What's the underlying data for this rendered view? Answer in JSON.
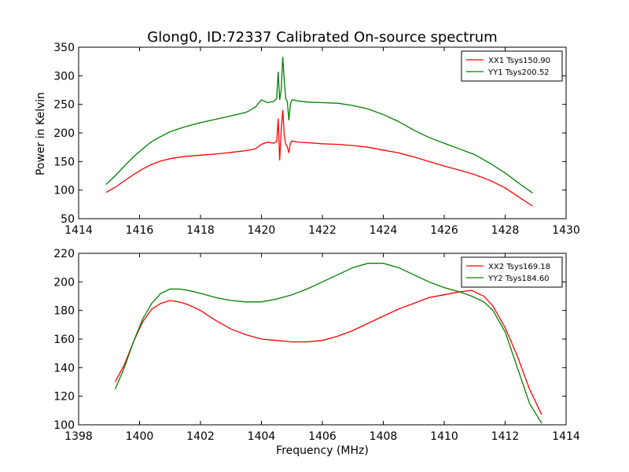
{
  "figure": {
    "title": "Glong0, ID:72337 Calibrated On-source spectrum",
    "ylabel": "Power in Kelvin",
    "xlabel": "Frequency (MHz)"
  },
  "chart_data": [
    {
      "type": "line",
      "title": "Glong0, ID:72337 Calibrated On-source spectrum",
      "ylabel": "Power in Kelvin",
      "xlabel": "",
      "xlim": [
        1414,
        1430
      ],
      "ylim": [
        50,
        350
      ],
      "xticks": [
        1414,
        1416,
        1418,
        1420,
        1422,
        1424,
        1426,
        1428,
        1430
      ],
      "yticks": [
        50,
        100,
        150,
        200,
        250,
        300,
        350
      ],
      "legend_position": "top-right",
      "grid": false,
      "series": [
        {
          "name": "XX1 Tsys150.90",
          "color": "#ff0000",
          "x": [
            1414.9,
            1415.2,
            1415.5,
            1415.8,
            1416.1,
            1416.4,
            1416.7,
            1417.0,
            1417.5,
            1418.0,
            1418.5,
            1419.0,
            1419.5,
            1419.8,
            1420.0,
            1420.2,
            1420.4,
            1420.5,
            1420.55,
            1420.6,
            1420.65,
            1420.7,
            1420.75,
            1420.8,
            1420.85,
            1420.9,
            1420.95,
            1421.0,
            1421.2,
            1421.5,
            1422.0,
            1422.5,
            1423.0,
            1423.5,
            1424.0,
            1424.5,
            1425.0,
            1425.5,
            1426.0,
            1426.5,
            1427.0,
            1427.5,
            1428.0,
            1428.5,
            1428.9
          ],
          "y": [
            96,
            105,
            116,
            127,
            137,
            145,
            151,
            155,
            159,
            161,
            163,
            166,
            169,
            172,
            180,
            184,
            182,
            185,
            225,
            152,
            205,
            240,
            195,
            180,
            176,
            165,
            182,
            186,
            184,
            183,
            181,
            180,
            178,
            175,
            170,
            165,
            158,
            150,
            142,
            135,
            127,
            117,
            104,
            86,
            72
          ]
        },
        {
          "name": "YY1 Tsys200.52",
          "color": "#008000",
          "x": [
            1414.9,
            1415.2,
            1415.5,
            1415.8,
            1416.1,
            1416.4,
            1416.7,
            1417.0,
            1417.5,
            1418.0,
            1418.5,
            1419.0,
            1419.5,
            1419.8,
            1420.0,
            1420.2,
            1420.4,
            1420.5,
            1420.55,
            1420.6,
            1420.65,
            1420.7,
            1420.75,
            1420.8,
            1420.85,
            1420.9,
            1420.95,
            1421.0,
            1421.2,
            1421.5,
            1422.0,
            1422.5,
            1423.0,
            1423.5,
            1424.0,
            1424.5,
            1425.0,
            1425.5,
            1426.0,
            1426.5,
            1427.0,
            1427.5,
            1428.0,
            1428.5,
            1428.9
          ],
          "y": [
            110,
            125,
            142,
            158,
            172,
            185,
            194,
            202,
            211,
            218,
            224,
            230,
            236,
            245,
            258,
            253,
            255,
            260,
            307,
            258,
            275,
            333,
            290,
            260,
            255,
            222,
            250,
            258,
            256,
            254,
            253,
            252,
            248,
            242,
            232,
            220,
            205,
            192,
            182,
            172,
            162,
            147,
            130,
            110,
            95
          ]
        }
      ]
    },
    {
      "type": "line",
      "title": "",
      "ylabel": "",
      "xlabel": "Frequency (MHz)",
      "xlim": [
        1398,
        1414
      ],
      "ylim": [
        100,
        220
      ],
      "xticks": [
        1398,
        1400,
        1402,
        1404,
        1406,
        1408,
        1410,
        1412,
        1414
      ],
      "yticks": [
        100,
        120,
        140,
        160,
        180,
        200,
        220
      ],
      "legend_position": "top-right",
      "grid": false,
      "series": [
        {
          "name": "XX2 Tsys169.18",
          "color": "#ff0000",
          "x": [
            1399.2,
            1399.5,
            1399.8,
            1400.1,
            1400.4,
            1400.7,
            1401.0,
            1401.3,
            1401.6,
            1402.0,
            1402.5,
            1403.0,
            1403.5,
            1404.0,
            1404.5,
            1405.0,
            1405.5,
            1406.0,
            1406.5,
            1407.0,
            1407.5,
            1408.0,
            1408.5,
            1409.0,
            1409.5,
            1410.0,
            1410.5,
            1410.9,
            1411.3,
            1411.6,
            1412.0,
            1412.4,
            1412.8,
            1413.2
          ],
          "y": [
            130,
            142,
            158,
            172,
            181,
            185,
            187,
            186,
            184,
            180,
            173,
            167,
            163,
            160,
            159,
            158,
            158,
            159,
            162,
            166,
            171,
            176,
            181,
            185,
            189,
            191,
            193,
            194,
            190,
            183,
            168,
            148,
            125,
            107
          ]
        },
        {
          "name": "YY2 Tsys184.60",
          "color": "#008000",
          "x": [
            1399.2,
            1399.5,
            1399.8,
            1400.1,
            1400.4,
            1400.7,
            1401.0,
            1401.3,
            1401.6,
            1402.0,
            1402.5,
            1403.0,
            1403.5,
            1404.0,
            1404.5,
            1405.0,
            1405.5,
            1406.0,
            1406.5,
            1407.0,
            1407.5,
            1408.0,
            1408.5,
            1409.0,
            1409.5,
            1410.0,
            1410.5,
            1410.9,
            1411.3,
            1411.6,
            1412.0,
            1412.4,
            1412.8,
            1413.2
          ],
          "y": [
            125,
            140,
            158,
            174,
            185,
            192,
            195,
            195,
            194,
            192,
            189,
            187,
            186,
            186,
            188,
            191,
            195,
            200,
            205,
            210,
            213,
            213,
            210,
            205,
            200,
            196,
            193,
            190,
            186,
            180,
            165,
            140,
            115,
            101
          ]
        }
      ]
    }
  ]
}
